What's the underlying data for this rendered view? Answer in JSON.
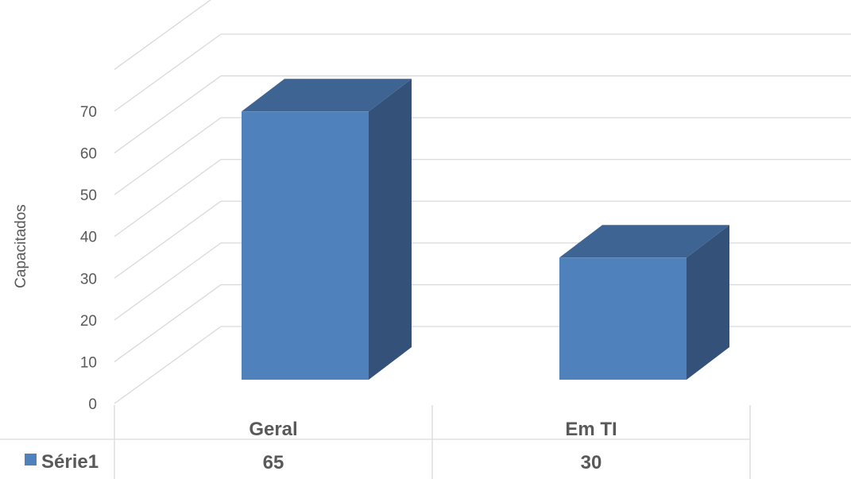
{
  "chart_data": {
    "type": "bar",
    "categories": [
      "Geral",
      "Em TI"
    ],
    "series": [
      {
        "name": "Série1",
        "values": [
          65,
          30
        ]
      }
    ],
    "ylabel": "Capacitados",
    "ylim": [
      0,
      70
    ],
    "yticks": [
      0,
      10,
      20,
      30,
      40,
      50,
      60,
      70
    ],
    "grid": true,
    "three_d": true,
    "data_table": true,
    "colors": {
      "front": "#4f81bd",
      "top": "#3e6494",
      "side": "#345279",
      "grid": "#d9d9d9",
      "text": "#595959"
    }
  }
}
